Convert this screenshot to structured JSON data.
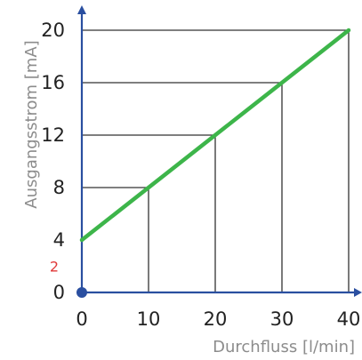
{
  "chart_data": {
    "type": "line",
    "title": "",
    "xlabel": "Durchfluss [l/min]",
    "ylabel": "Ausgangsstrom [mA]",
    "xlim": [
      0,
      40
    ],
    "ylim": [
      0,
      20
    ],
    "x_ticks": [
      "0",
      "10",
      "20",
      "30",
      "40"
    ],
    "y_ticks": [
      "0",
      "4",
      "8",
      "12",
      "16",
      "20"
    ],
    "extra_tick": {
      "label": "2",
      "value": 2,
      "color": "#e03a3a"
    },
    "series": [
      {
        "x": [
          0,
          40
        ],
        "y": [
          4,
          20
        ],
        "color": "#3db54a"
      }
    ],
    "reference_points": [
      {
        "x": 10,
        "y": 8
      },
      {
        "x": 20,
        "y": 12
      },
      {
        "x": 30,
        "y": 16
      },
      {
        "x": 40,
        "y": 20
      }
    ],
    "colors": {
      "axis": "#2a4fa0",
      "line": "#3db54a",
      "guide": "#333333",
      "origin_dot": "#2a4fa0"
    },
    "grid": false
  }
}
